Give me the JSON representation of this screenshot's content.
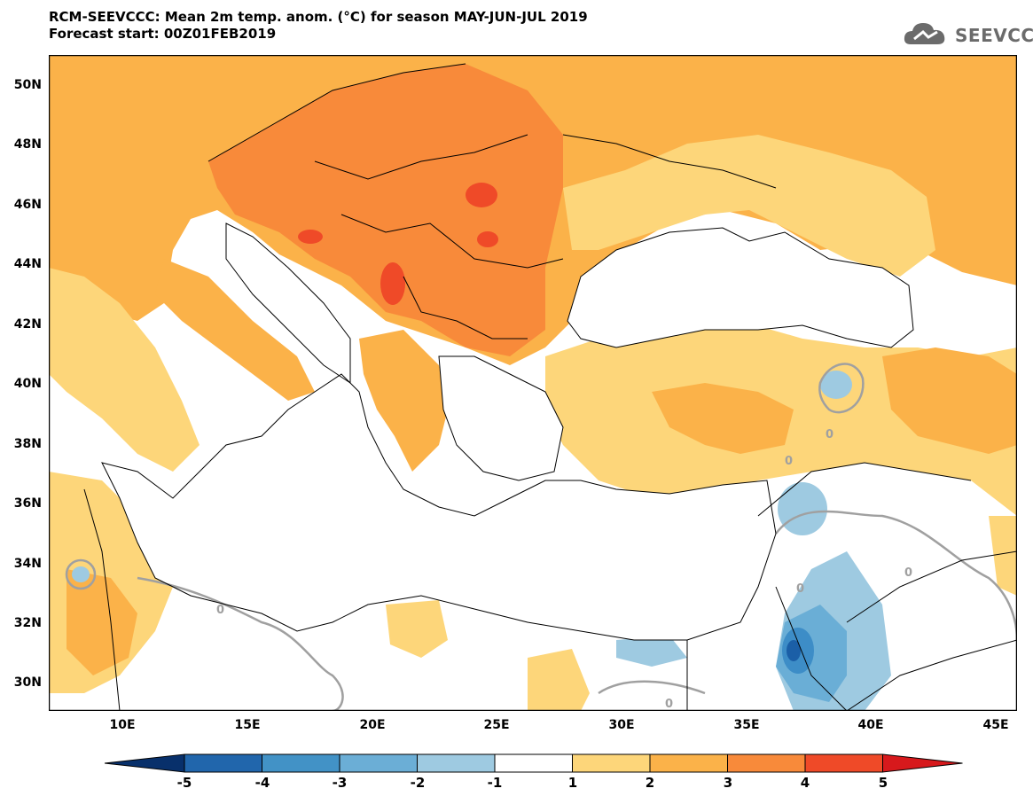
{
  "title": {
    "line1": "RCM-SEEVCCC: Mean 2m temp. anom. (°C) for season MAY-JUN-JUL 2019",
    "line2": "Forecast start: 00Z01FEB2019"
  },
  "logo": {
    "text": "SEEVCCC",
    "icon": "cloud-icon"
  },
  "map": {
    "lat_labels": [
      "50N",
      "48N",
      "46N",
      "44N",
      "42N",
      "40N",
      "38N",
      "36N",
      "34N",
      "32N",
      "30N"
    ],
    "lon_labels": [
      "10E",
      "15E",
      "20E",
      "25E",
      "30E",
      "35E",
      "40E",
      "45E"
    ],
    "contour_label": "0",
    "colors": {
      "sea": "#ffffff",
      "land_neutral": "#ffffff",
      "anom_1_2": "#fdd67a",
      "anom_2_3": "#fbb249",
      "anom_3_4": "#f88a3a",
      "anom_4_5": "#ef4a28",
      "anom_m1_m2": "#9ecae1",
      "anom_m2_m3": "#6aaed6",
      "anom_m3_m4": "#3d8dc7",
      "anom_m4_m5": "#1b5fa7",
      "zero_contour": "#a0a0a0",
      "borders": "#000000"
    }
  },
  "colorbar": {
    "labels": [
      "-5",
      "-4",
      "-3",
      "-2",
      "-1",
      "1",
      "2",
      "3",
      "4",
      "5"
    ],
    "colors": [
      "#08306b",
      "#2166ac",
      "#4292c6",
      "#6baed6",
      "#9ecae1",
      "#ffffff",
      "#fdd67a",
      "#fbb249",
      "#f88a3a",
      "#ef4a28",
      "#d7191c"
    ]
  }
}
